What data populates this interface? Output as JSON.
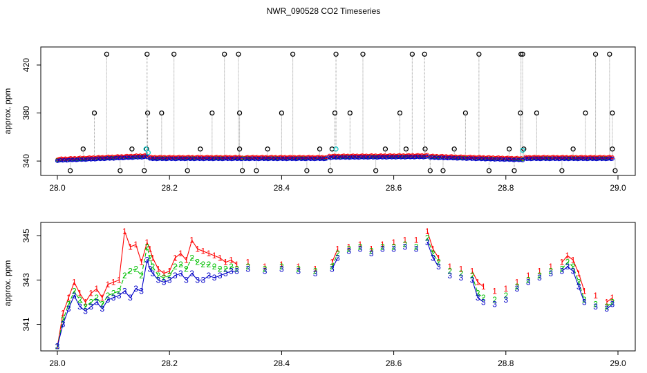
{
  "title": "NWR_090528  CO2 Timeseries",
  "colors": {
    "s1": "#ff0000",
    "s2": "#00c000",
    "s3": "#0000c8",
    "outlier": "#000000",
    "cyan": "#00c8c8",
    "guide": "#999999"
  },
  "chart_data": [
    {
      "type": "scatter",
      "panel": "top",
      "ylabel": "approx. ppm",
      "xlabel": "",
      "xlim": [
        28.0,
        29.0
      ],
      "ylim": [
        328,
        435
      ],
      "xticks": [
        "28.0",
        "28.2",
        "28.4",
        "28.6",
        "28.8",
        "29.0"
      ],
      "yticks": [
        "340",
        "380",
        "420"
      ],
      "baseline_segments": [
        {
          "x": [
            28.0,
            28.16
          ],
          "y": [
            340.5,
            343.5
          ]
        },
        {
          "x": [
            28.165,
            28.33
          ],
          "y": [
            342,
            342
          ]
        },
        {
          "x": [
            28.335,
            28.48
          ],
          "y": [
            342,
            342
          ]
        },
        {
          "x": [
            28.485,
            28.66
          ],
          "y": [
            343,
            343.5
          ]
        },
        {
          "x": [
            28.665,
            28.83
          ],
          "y": [
            343,
            341
          ]
        },
        {
          "x": [
            28.835,
            28.99
          ],
          "y": [
            342,
            342
          ]
        }
      ],
      "outliers_high": [
        28.088,
        28.16,
        28.208,
        28.298,
        28.323,
        28.42,
        28.497,
        28.545,
        28.633,
        28.655,
        28.752,
        28.827,
        28.83,
        28.96,
        28.985
      ],
      "outliers_mid": [
        28.066,
        28.161,
        28.186,
        28.276,
        28.325,
        28.4,
        28.495,
        28.522,
        28.611,
        28.728,
        28.826,
        28.855,
        28.942,
        28.99
      ],
      "outliers_mild": [
        28.046,
        28.133,
        28.159,
        28.255,
        28.325,
        28.375,
        28.468,
        28.49,
        28.585,
        28.622,
        28.656,
        28.708,
        28.806,
        28.832,
        28.92,
        28.99
      ],
      "outliers_low": [
        28.023,
        28.112,
        28.155,
        28.232,
        28.33,
        28.355,
        28.445,
        28.487,
        28.568,
        28.665,
        28.688,
        28.77,
        28.815,
        28.9,
        28.995
      ],
      "cyan_points": [
        [
          28.158,
          350
        ],
        [
          28.162,
          347
        ],
        [
          28.497,
          350
        ],
        [
          28.83,
          349
        ]
      ]
    },
    {
      "type": "line",
      "panel": "bottom",
      "ylabel": "approx. ppm",
      "xlabel": "",
      "xlim": [
        28.0,
        29.0
      ],
      "ylim": [
        339.8,
        345.6
      ],
      "xticks": [
        "28.0",
        "28.2",
        "28.4",
        "28.6",
        "28.8",
        "29.0"
      ],
      "yticks": [
        "341",
        "343",
        "345"
      ],
      "series": [
        {
          "name": "1",
          "x": [
            28.0,
            28.01,
            28.02,
            28.03,
            28.04,
            28.05,
            28.06,
            28.07,
            28.08,
            28.09,
            28.1,
            28.11,
            28.12,
            28.13,
            28.14,
            28.15,
            28.16,
            28.165,
            28.17,
            28.18,
            28.19,
            28.2,
            28.21,
            28.22,
            28.23,
            28.24,
            28.25,
            28.26,
            28.27,
            28.28,
            28.29,
            28.3,
            28.31,
            28.32,
            28.34,
            28.37,
            28.4,
            28.43,
            28.46,
            28.49,
            28.5,
            28.52,
            28.54,
            28.56,
            28.58,
            28.6,
            28.62,
            28.64,
            28.66,
            28.67,
            28.68,
            28.7,
            28.72,
            28.74,
            28.75,
            28.76,
            28.78,
            28.8,
            28.82,
            28.84,
            28.86,
            28.88,
            28.9,
            28.91,
            28.92,
            28.93,
            28.94,
            28.96,
            28.98,
            28.99
          ],
          "values": [
            340.0,
            341.5,
            342.2,
            342.9,
            342.4,
            342.0,
            342.4,
            342.6,
            342.2,
            342.8,
            342.9,
            343.0,
            345.2,
            344.5,
            344.6,
            343.8,
            344.7,
            344.4,
            344.0,
            343.5,
            343.3,
            343.4,
            344.0,
            344.2,
            343.9,
            344.8,
            344.4,
            344.3,
            344.2,
            344.1,
            344.0,
            343.8,
            343.9,
            343.7,
            343.8,
            343.6,
            343.7,
            343.6,
            343.5,
            343.8,
            344.4,
            344.5,
            344.6,
            344.4,
            344.6,
            344.7,
            344.8,
            344.8,
            345.2,
            344.4,
            344.0,
            343.6,
            343.5,
            343.4,
            342.9,
            342.7,
            342.5,
            342.6,
            342.9,
            343.2,
            343.4,
            343.6,
            343.8,
            344.1,
            343.9,
            343.3,
            342.5,
            342.3,
            342.0,
            342.2
          ]
        },
        {
          "name": "2",
          "x": [
            28.0,
            28.01,
            28.02,
            28.03,
            28.04,
            28.05,
            28.06,
            28.07,
            28.08,
            28.09,
            28.1,
            28.11,
            28.12,
            28.13,
            28.14,
            28.15,
            28.16,
            28.165,
            28.17,
            28.18,
            28.19,
            28.2,
            28.21,
            28.22,
            28.23,
            28.24,
            28.25,
            28.26,
            28.27,
            28.28,
            28.29,
            28.3,
            28.31,
            28.32,
            28.34,
            28.37,
            28.4,
            28.43,
            28.46,
            28.49,
            28.5,
            28.52,
            28.54,
            28.56,
            28.58,
            28.6,
            28.62,
            28.64,
            28.66,
            28.67,
            28.68,
            28.7,
            28.72,
            28.74,
            28.75,
            28.76,
            28.78,
            28.8,
            28.82,
            28.84,
            28.86,
            28.88,
            28.9,
            28.91,
            28.92,
            28.93,
            28.94,
            28.96,
            28.98,
            28.99
          ],
          "values": [
            340.0,
            341.2,
            341.9,
            342.5,
            342.1,
            341.8,
            342.0,
            342.2,
            341.9,
            342.3,
            342.4,
            342.5,
            343.2,
            343.4,
            343.5,
            343.2,
            344.5,
            344.0,
            343.6,
            343.2,
            343.1,
            343.2,
            343.6,
            343.7,
            343.5,
            344.0,
            343.8,
            343.7,
            343.7,
            343.6,
            343.5,
            343.5,
            343.6,
            343.5,
            343.6,
            343.5,
            343.6,
            343.5,
            343.4,
            343.6,
            344.2,
            344.4,
            344.5,
            344.3,
            344.5,
            344.5,
            344.6,
            344.5,
            344.9,
            344.2,
            343.8,
            343.4,
            343.3,
            343.2,
            342.4,
            342.2,
            342.1,
            342.3,
            342.7,
            343.0,
            343.2,
            343.4,
            343.5,
            343.8,
            343.6,
            342.9,
            342.1,
            341.9,
            341.8,
            342.0
          ]
        },
        {
          "name": "3",
          "x": [
            28.0,
            28.01,
            28.02,
            28.03,
            28.04,
            28.05,
            28.06,
            28.07,
            28.08,
            28.09,
            28.1,
            28.11,
            28.12,
            28.13,
            28.14,
            28.15,
            28.16,
            28.165,
            28.17,
            28.18,
            28.19,
            28.2,
            28.21,
            28.22,
            28.23,
            28.24,
            28.25,
            28.26,
            28.27,
            28.28,
            28.29,
            28.3,
            28.31,
            28.32,
            28.34,
            28.37,
            28.4,
            28.43,
            28.46,
            28.49,
            28.5,
            28.52,
            28.54,
            28.56,
            28.58,
            28.6,
            28.62,
            28.64,
            28.66,
            28.67,
            28.68,
            28.7,
            28.72,
            28.74,
            28.75,
            28.76,
            28.78,
            28.8,
            28.82,
            28.84,
            28.86,
            28.88,
            28.9,
            28.91,
            28.92,
            28.93,
            28.94,
            28.96,
            28.98,
            28.99
          ],
          "values": [
            340.0,
            341.0,
            341.7,
            342.3,
            341.8,
            341.6,
            341.8,
            342.0,
            341.7,
            342.1,
            342.2,
            342.3,
            342.5,
            342.2,
            342.6,
            342.5,
            343.9,
            343.5,
            343.3,
            343.0,
            342.9,
            343.0,
            343.2,
            343.3,
            343.0,
            343.3,
            343.0,
            343.0,
            343.2,
            343.1,
            343.2,
            343.3,
            343.4,
            343.4,
            343.5,
            343.4,
            343.5,
            343.4,
            343.3,
            343.5,
            344.0,
            344.3,
            344.4,
            344.2,
            344.4,
            344.4,
            344.5,
            344.4,
            344.7,
            344.0,
            343.6,
            343.2,
            343.1,
            343.0,
            342.2,
            342.0,
            341.9,
            342.1,
            342.6,
            342.9,
            343.1,
            343.3,
            343.4,
            343.6,
            343.4,
            342.7,
            342.0,
            341.8,
            341.7,
            341.9
          ]
        }
      ]
    }
  ]
}
